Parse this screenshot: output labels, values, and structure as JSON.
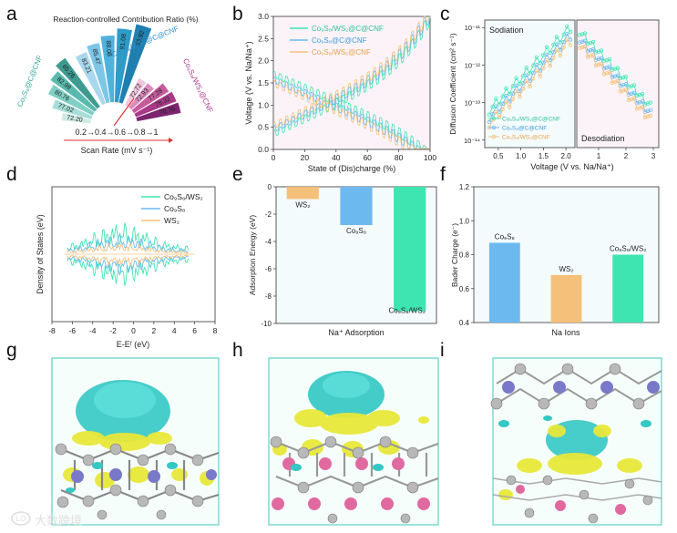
{
  "panels": {
    "a": "a",
    "b": "b",
    "c": "c",
    "d": "d",
    "e": "e",
    "f": "f",
    "g": "g",
    "h": "h",
    "i": "i"
  },
  "colors": {
    "green": "#3fe5b0",
    "blue": "#6cb9f0",
    "orange": "#f5c07a",
    "teal": "#48d6c7",
    "purple": "#9a2a8a",
    "magenta": "#d33b84"
  },
  "panel_a": {
    "title": "Reaction-controlled Contribution Ratio (%)",
    "scan_rate_seq": "0.2→0.4→0.6→0.8→1",
    "scan_rate_label": "Scan Rate (mV s⁻¹)",
    "groups": [
      {
        "name": "Co₉S₈/WS₂@C@CNF",
        "values": [
          83.21,
          85.47,
          88.08,
          91.08,
          93.92
        ]
      },
      {
        "name": "Co₉S₈@C@CNF",
        "values": [
          72.2,
          77.02,
          80.76,
          82.98,
          85.26
        ]
      },
      {
        "name": "Co₉S₈/WS₂@CNF",
        "values": [
          72.72,
          72.93,
          77.28,
          78.32,
          78.76
        ]
      }
    ]
  },
  "panel_b": {
    "xlabel": "State of (Dis)charge (%)",
    "ylabel": "Voltage (V vs. Na/Na⁺)",
    "xticks": [
      "0",
      "20",
      "40",
      "60",
      "80",
      "100"
    ],
    "yticks": [
      "0.0",
      "0.5",
      "1.0",
      "1.5",
      "2.0",
      "2.5",
      "3.0"
    ],
    "legend": [
      "Co₉S₈/WS₂@C@CNF",
      "Co₉S₈@C@CNF",
      "Co₉S₈/WS₂@CNF"
    ]
  },
  "panel_c": {
    "ylabel": "Diffusion Coefficient (cm² s⁻¹)",
    "xlabel": "Voltage (V vs. Na/Na⁺)",
    "yticks": [
      "10⁻¹¹",
      "10⁻¹²",
      "10⁻¹³",
      "10⁻¹⁴"
    ],
    "xticks_left": [
      "0.5",
      "1.0",
      "1.5",
      "2.0"
    ],
    "xticks_right": [
      "1",
      "2",
      "3"
    ],
    "left_title": "Sodiation",
    "right_title": "Desodiation",
    "legend": [
      "Co₉S₈/WS₂@C@CNF",
      "Co₉S₈@C@CNF",
      "Co₉S₈/WS₂@CNF"
    ]
  },
  "panel_d": {
    "ylabel": "Density of States (eV)",
    "xlabel": "E-Eᶠ (eV)",
    "xticks": [
      "-8",
      "-6",
      "-4",
      "-2",
      "0",
      "2",
      "4",
      "6",
      "8"
    ],
    "legend": [
      "Co₉S₈/WS₂",
      "Co₉S₈",
      "WS₂"
    ]
  },
  "chart_data": [
    {
      "type": "bar",
      "title": "",
      "xlabel": "Na⁺ Adsorption",
      "ylabel": "Adsorption Energy (eV)",
      "categories": [
        "WS₂",
        "Co₉S₈",
        "Co₉S₈/WS₂"
      ],
      "values": [
        -0.9,
        -2.8,
        -9.1
      ],
      "ylim": [
        -10,
        0
      ],
      "yticks": [
        "0",
        "-2",
        "-4",
        "-6",
        "-8",
        "-10"
      ]
    },
    {
      "type": "bar",
      "title": "",
      "xlabel": "Na Ions",
      "ylabel": "Bader Charge (e⁻)",
      "categories": [
        "Co₉S₈",
        "WS₂",
        "Co₉S₈/WS₂"
      ],
      "values": [
        0.87,
        0.68,
        0.8
      ],
      "ylim": [
        0.4,
        1.2
      ],
      "yticks": [
        "0.4",
        "0.6",
        "0.8",
        "1.0",
        "1.2"
      ]
    }
  ],
  "watermark": "大数跨境"
}
